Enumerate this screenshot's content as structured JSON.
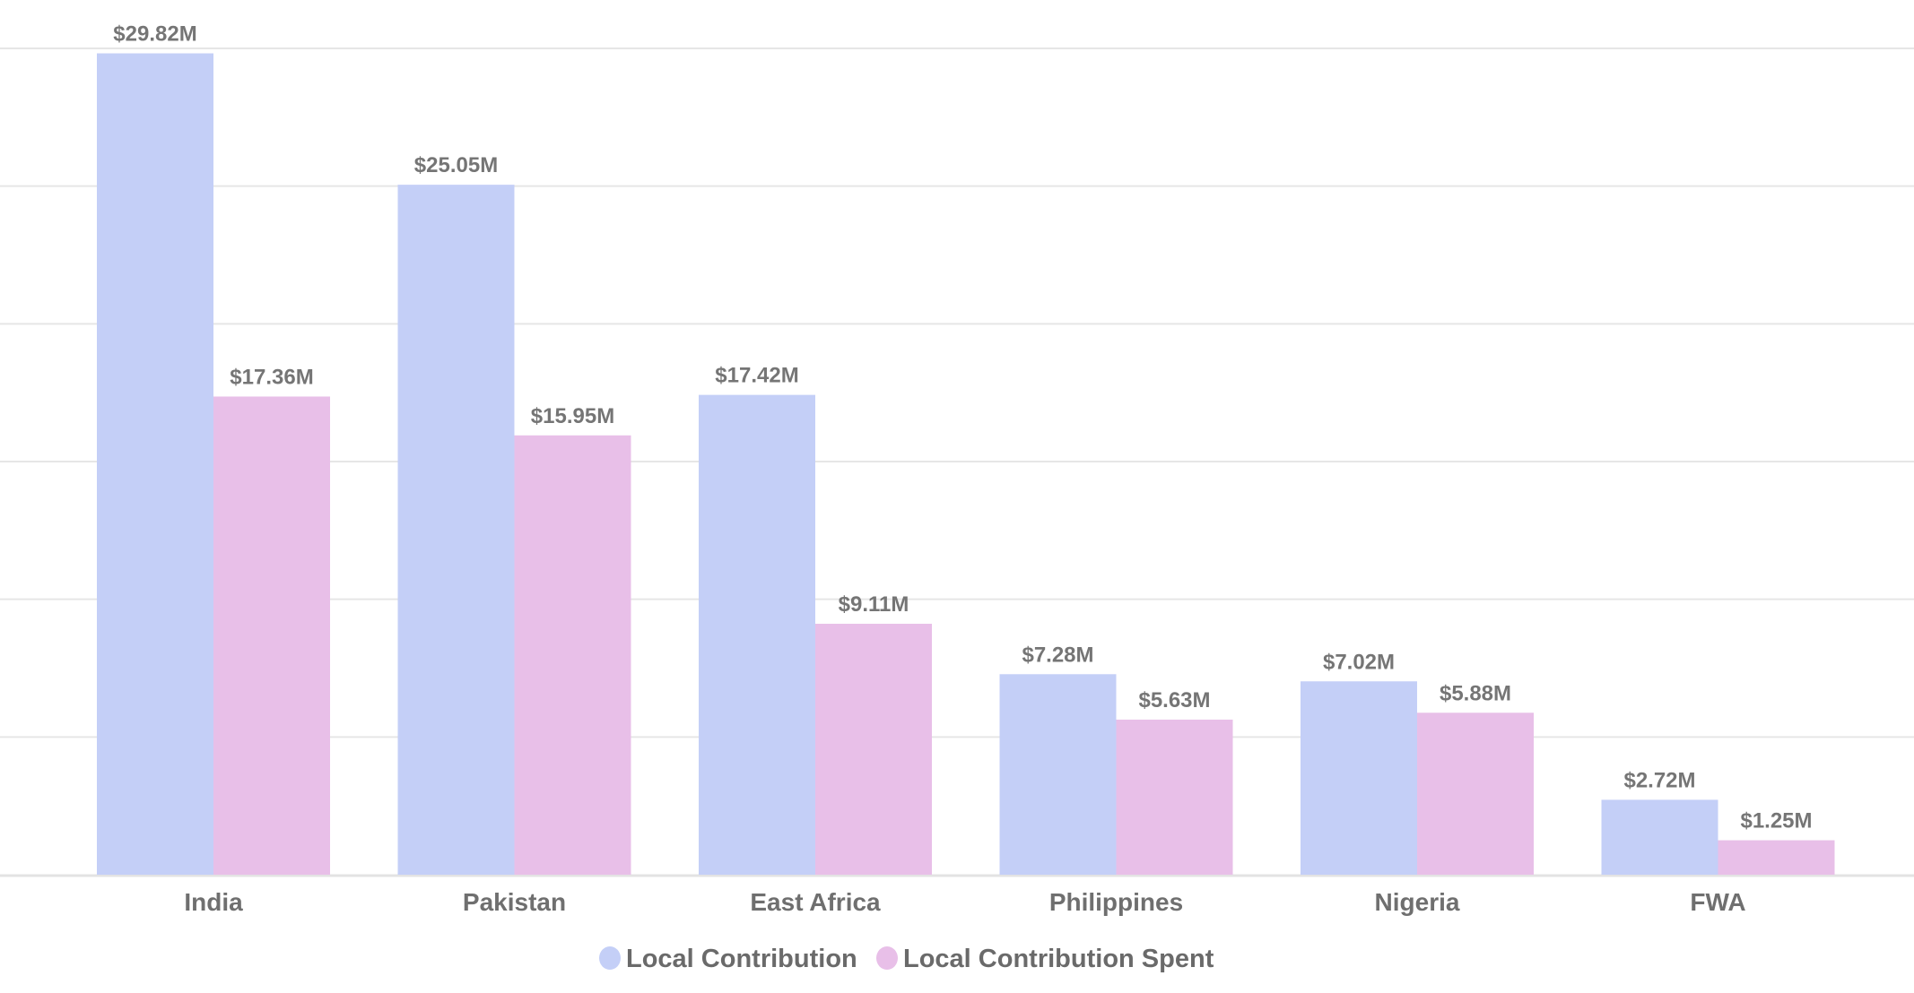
{
  "chart_data": {
    "type": "bar",
    "categories": [
      "India",
      "Pakistan",
      "East Africa",
      "Philippines",
      "Nigeria",
      "FWA"
    ],
    "series": [
      {
        "name": "Local Contribution",
        "color": "#c4cff7",
        "values": [
          29.82,
          25.05,
          17.42,
          7.28,
          7.02,
          2.72
        ],
        "labels": [
          "$29.82M",
          "$25.05M",
          "$17.42M",
          "$7.28M",
          "$7.02M",
          "$2.72M"
        ]
      },
      {
        "name": "Local Contribution Spent",
        "color": "#e8bfe8",
        "values": [
          17.36,
          15.95,
          9.11,
          5.63,
          5.88,
          1.25
        ],
        "labels": [
          "$17.36M",
          "$15.95M",
          "$9.11M",
          "$5.63M",
          "$5.88M",
          "$1.25M"
        ]
      }
    ],
    "ylim": [
      0,
      30
    ],
    "grid_step": 5,
    "grid": true,
    "y_tick_labels_shown": false,
    "legend_position": "bottom",
    "title": "",
    "xlabel": "",
    "ylabel": ""
  }
}
